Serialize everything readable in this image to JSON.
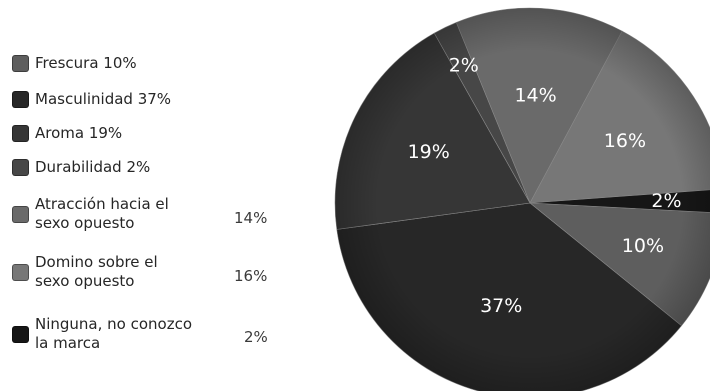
{
  "chart_data": {
    "type": "pie",
    "title": "",
    "slices": [
      {
        "label": "Frescura",
        "legend_text": "Frescura 10%",
        "value": 10,
        "slice_label": "10%",
        "color": "#5e5e5e"
      },
      {
        "label": "Masculinidad",
        "legend_text": "Masculinidad 37%",
        "value": 37,
        "slice_label": "37%",
        "color": "#272727"
      },
      {
        "label": "Aroma",
        "legend_text": "Aroma 19%",
        "value": 19,
        "slice_label": "19%",
        "color": "#363636"
      },
      {
        "label": "Durabilidad",
        "legend_text": "Durabilidad 2%",
        "value": 2,
        "slice_label": "2%",
        "color": "#474747"
      },
      {
        "label": "Atracción hacia el sexo opuesto",
        "legend_text": "Atracción hacia el\nsexo opuesto",
        "legend_value": "14%",
        "value": 14,
        "slice_label": "14%",
        "color": "#6a6a6a"
      },
      {
        "label": "Domino sobre el sexo opuesto",
        "legend_text": "Domino sobre el\nsexo opuesto",
        "legend_value": "16%",
        "value": 16,
        "slice_label": "16%",
        "color": "#777777"
      },
      {
        "label": "Ninguna, no conozco la marca",
        "legend_text": "Ninguna, no conozco\nla marca",
        "legend_value": "2%",
        "value": 2,
        "slice_label": "2%",
        "color": "#161616"
      }
    ],
    "legend_position": "left"
  }
}
